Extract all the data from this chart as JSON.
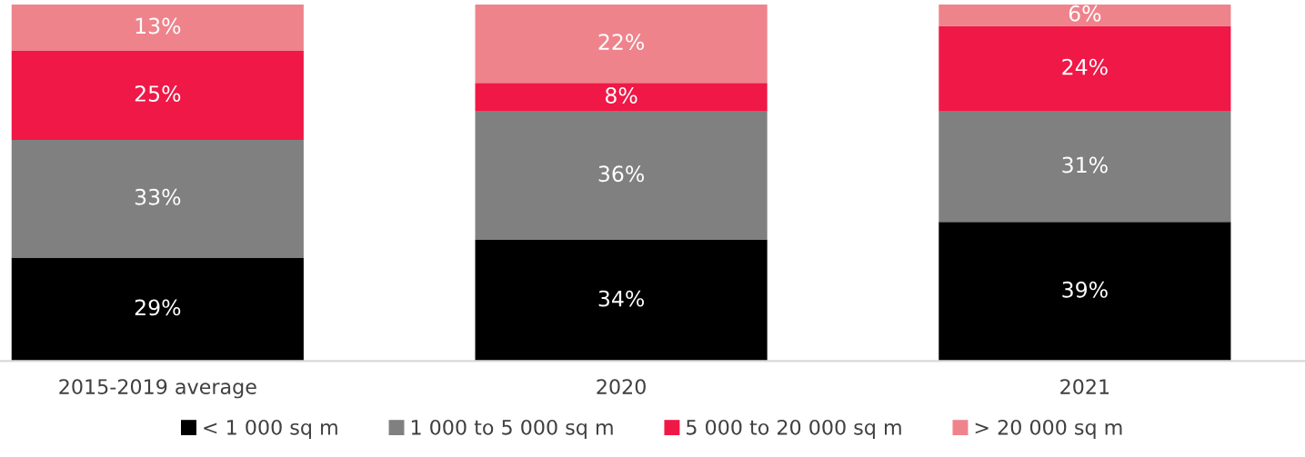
{
  "chart_data": {
    "type": "bar",
    "stacked": true,
    "categories": [
      "2015-2019 average",
      "2020",
      "2021"
    ],
    "series": [
      {
        "name": "< 1 000 sq m",
        "color": "#000000",
        "values": [
          29,
          34,
          39
        ],
        "value_labels": [
          "29%",
          "34%",
          "39%"
        ]
      },
      {
        "name": "1 000 to 5 000 sq m",
        "color": "#808080",
        "values": [
          33,
          36,
          31
        ],
        "value_labels": [
          "33%",
          "36%",
          "31%"
        ]
      },
      {
        "name": "5 000 to 20 000 sq m",
        "color": "#ef1847",
        "values": [
          25,
          8,
          24
        ],
        "value_labels": [
          "25%",
          "8%",
          "24%"
        ]
      },
      {
        "name": "> 20 000 sq m",
        "color": "#ee838c",
        "values": [
          13,
          22,
          6
        ],
        "value_labels": [
          "13%",
          "22%",
          "6%"
        ]
      }
    ],
    "ylim": [
      0,
      100
    ],
    "tick_labels": "x",
    "grid": false,
    "legend": "bottom"
  }
}
